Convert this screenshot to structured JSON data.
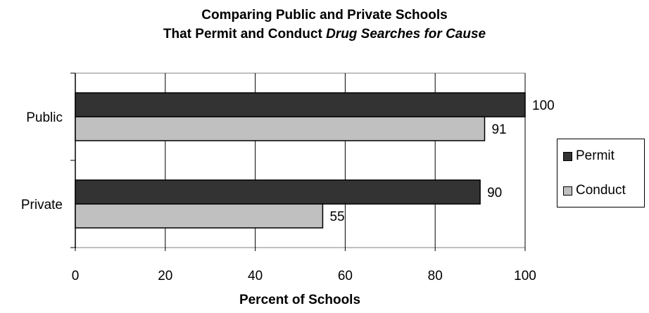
{
  "chart_data": {
    "type": "bar",
    "orientation": "horizontal",
    "title_line1": "Comparing Public and Private Schools",
    "title_line2_prefix": "That Permit and Conduct ",
    "title_line2_italic": "Drug Searches for Cause",
    "categories": [
      "Public",
      "Private"
    ],
    "series": [
      {
        "name": "Permit",
        "values": [
          100,
          90
        ],
        "color": "#333333"
      },
      {
        "name": "Conduct",
        "values": [
          91,
          55
        ],
        "color": "#c0c0c0"
      }
    ],
    "xlabel": "Percent of Schools",
    "xlim": [
      0,
      100
    ],
    "xticks": [
      0,
      20,
      40,
      60,
      80,
      100
    ],
    "grid": true,
    "legend_position": "right"
  }
}
